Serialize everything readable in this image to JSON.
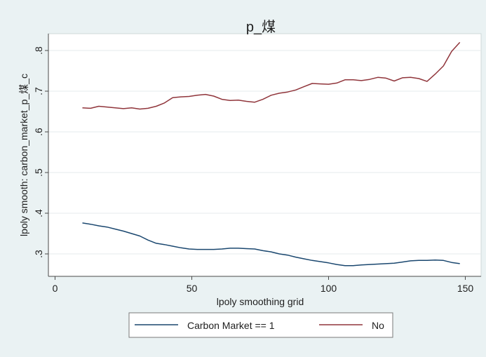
{
  "chart_data": {
    "type": "line",
    "title": "p_煤",
    "xlabel": "lpoly smoothing grid",
    "ylabel": "lpoly smooth: carbon_market_p_煤_c",
    "xlim": [
      0,
      150
    ],
    "ylim": [
      0.28,
      0.82
    ],
    "x_ticks": [
      0,
      50,
      100,
      150
    ],
    "x_tick_labels": [
      "0",
      "50",
      "100",
      "150"
    ],
    "y_ticks": [
      0.3,
      0.4,
      0.5,
      0.6,
      0.7,
      0.8
    ],
    "y_tick_labels": [
      ".3",
      ".4",
      ".5",
      ".6",
      ".7",
      ".8"
    ],
    "grid": "horizontal",
    "legend_position": "bottom",
    "x": [
      10,
      13,
      16,
      19,
      22,
      25,
      28,
      31,
      34,
      37,
      40,
      43,
      46,
      49,
      52,
      55,
      58,
      61,
      64,
      67,
      70,
      73,
      76,
      79,
      82,
      85,
      88,
      91,
      94,
      97,
      100,
      103,
      106,
      109,
      112,
      115,
      118,
      121,
      124,
      127,
      130,
      133,
      136,
      139,
      142,
      145,
      148
    ],
    "series": [
      {
        "name": "Carbon Market == 1",
        "color": "#1a476f",
        "values": [
          0.376,
          0.373,
          0.369,
          0.366,
          0.361,
          0.356,
          0.35,
          0.344,
          0.334,
          0.326,
          0.323,
          0.319,
          0.315,
          0.312,
          0.311,
          0.311,
          0.311,
          0.312,
          0.314,
          0.314,
          0.313,
          0.312,
          0.308,
          0.305,
          0.3,
          0.297,
          0.292,
          0.288,
          0.284,
          0.281,
          0.278,
          0.274,
          0.271,
          0.271,
          0.273,
          0.274,
          0.275,
          0.276,
          0.277,
          0.28,
          0.283,
          0.284,
          0.284,
          0.285,
          0.284,
          0.279,
          0.276
        ]
      },
      {
        "name": "No",
        "color": "#90353b",
        "values": [
          0.659,
          0.658,
          0.663,
          0.661,
          0.659,
          0.657,
          0.659,
          0.656,
          0.658,
          0.663,
          0.671,
          0.684,
          0.686,
          0.687,
          0.69,
          0.692,
          0.688,
          0.68,
          0.677,
          0.678,
          0.675,
          0.673,
          0.68,
          0.69,
          0.695,
          0.698,
          0.703,
          0.711,
          0.719,
          0.718,
          0.717,
          0.72,
          0.728,
          0.728,
          0.726,
          0.729,
          0.734,
          0.732,
          0.725,
          0.733,
          0.734,
          0.731,
          0.724,
          0.742,
          0.762,
          0.798,
          0.82
        ]
      }
    ]
  }
}
